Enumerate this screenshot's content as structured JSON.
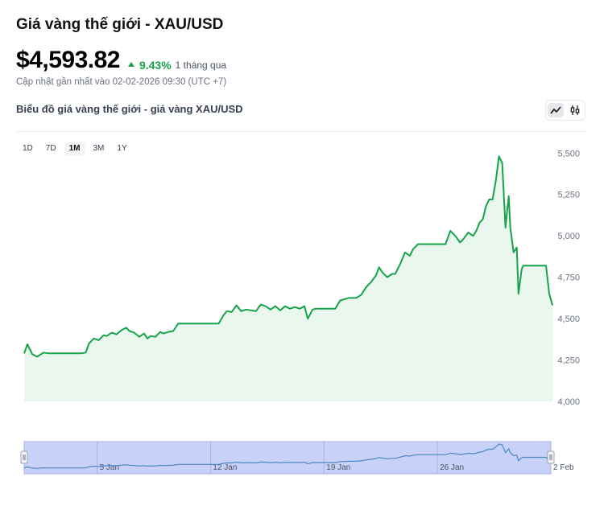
{
  "header": {
    "title": "Giá vàng thế giới - XAU/USD",
    "price": "$4,593.82",
    "change_pct": "9.43%",
    "change_period": "1 tháng qua",
    "updated": "Cập nhật gần nhất vào 02-02-2026 09:30 (UTC +7)",
    "subtitle": "Biểu đồ giá vàng thế giới - giá vàng XAU/USD"
  },
  "toggle": {
    "items": [
      "line-chart-icon",
      "candlestick-icon"
    ],
    "active": 0
  },
  "ranges": {
    "items": [
      "1D",
      "7D",
      "1M",
      "3M",
      "1Y"
    ],
    "active": 2
  },
  "colors": {
    "line": "#16a34a",
    "fill": "#eaf7ef",
    "navigator_fill": "#c8d1f7",
    "navigator_line": "#4f86c6"
  },
  "chart_data": {
    "type": "area",
    "ylim": [
      4000,
      5550
    ],
    "yticks": [
      4000,
      4250,
      4500,
      4750,
      5000,
      5250,
      5500
    ],
    "ytick_labels": [
      "4,000",
      "4,250",
      "4,500",
      "4,750",
      "5,000",
      "5,250",
      "5,500"
    ],
    "xlim": [
      0,
      32.5
    ],
    "navigator_ticks": [
      {
        "x": 4.5,
        "label": "5 Jan"
      },
      {
        "x": 11.5,
        "label": "12 Jan"
      },
      {
        "x": 18.5,
        "label": "19 Jan"
      },
      {
        "x": 25.5,
        "label": "26 Jan"
      },
      {
        "x": 32.5,
        "label": "2 Feb"
      }
    ],
    "x": [
      0,
      0.2,
      0.5,
      0.8,
      1.2,
      1.5,
      2,
      2.5,
      3,
      3.5,
      3.8,
      4,
      4.3,
      4.6,
      4.9,
      5.1,
      5.4,
      5.7,
      6,
      6.3,
      6.5,
      6.8,
      7.1,
      7.4,
      7.6,
      7.8,
      8.1,
      8.4,
      8.6,
      8.9,
      9.2,
      9.5,
      10,
      10.5,
      11,
      11.5,
      12,
      12.3,
      12.5,
      12.8,
      13.1,
      13.4,
      13.7,
      14,
      14.3,
      14.6,
      14.9,
      15.2,
      15.5,
      15.8,
      16.1,
      16.4,
      16.7,
      17,
      17.3,
      17.5,
      17.8,
      18,
      18.5,
      19,
      19.2,
      19.5,
      20,
      20.5,
      20.8,
      21.1,
      21.4,
      21.7,
      21.9,
      22.1,
      22.4,
      22.7,
      22.9,
      23.2,
      23.5,
      23.8,
      24,
      24.3,
      25,
      25.5,
      26,
      26.3,
      26.6,
      26.9,
      27.1,
      27.4,
      27.7,
      27.9,
      28.1,
      28.3,
      28.5,
      28.7,
      28.9,
      29.1,
      29.3,
      29.5,
      29.7,
      29.8,
      29.9,
      30,
      30.2,
      30.4,
      30.5,
      30.7,
      30.8,
      31,
      31.2,
      31.5,
      32,
      32.2,
      32.4,
      32.6
    ],
    "values": [
      4290,
      4345,
      4285,
      4270,
      4295,
      4290,
      4290,
      4290,
      4290,
      4290,
      4295,
      4350,
      4380,
      4370,
      4400,
      4395,
      4415,
      4405,
      4430,
      4445,
      4425,
      4415,
      4390,
      4410,
      4380,
      4395,
      4390,
      4420,
      4410,
      4420,
      4425,
      4470,
      4470,
      4470,
      4470,
      4470,
      4470,
      4520,
      4545,
      4540,
      4580,
      4545,
      4555,
      4550,
      4545,
      4585,
      4575,
      4555,
      4575,
      4550,
      4575,
      4560,
      4570,
      4560,
      4575,
      4500,
      4555,
      4560,
      4560,
      4560,
      4560,
      4610,
      4625,
      4625,
      4645,
      4690,
      4720,
      4760,
      4810,
      4780,
      4750,
      4770,
      4770,
      4830,
      4900,
      4880,
      4920,
      4950,
      4950,
      4950,
      4950,
      5030,
      5000,
      4960,
      4980,
      5020,
      5000,
      5030,
      5080,
      5100,
      5180,
      5220,
      5220,
      5330,
      5480,
      5440,
      5050,
      5150,
      5240,
      5050,
      4900,
      4930,
      4650,
      4800,
      4820,
      4820,
      4820,
      4820,
      4820,
      4820,
      4650,
      4580
    ]
  }
}
